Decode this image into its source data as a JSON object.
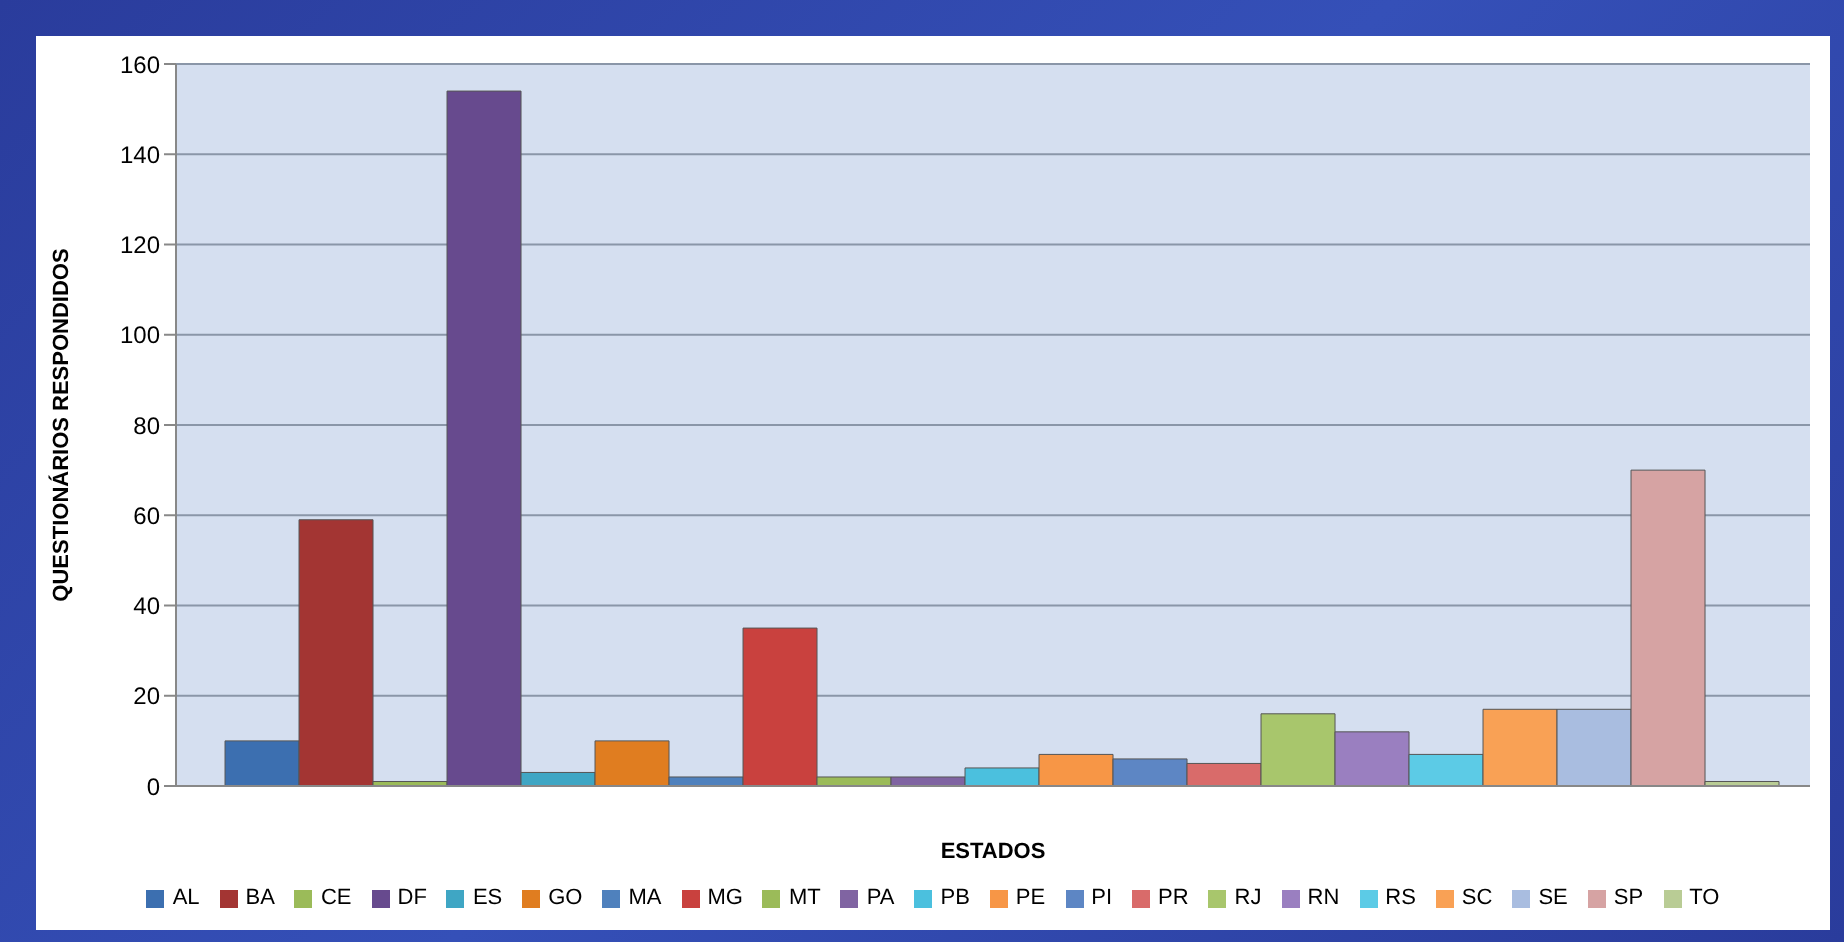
{
  "chart_data": {
    "type": "bar",
    "xlabel": "ESTADOS",
    "ylabel": "QUESTIONÁRIOS RESPONDIDOS",
    "categories": [
      null
    ],
    "series": [
      {
        "name": "AL",
        "color": "#3c6fb0",
        "values": [
          10
        ]
      },
      {
        "name": "BA",
        "color": "#a33533",
        "values": [
          59
        ]
      },
      {
        "name": "CE",
        "color": "#9bbb59",
        "values": [
          1
        ]
      },
      {
        "name": "DF",
        "color": "#674a8e",
        "values": [
          154
        ]
      },
      {
        "name": "ES",
        "color": "#3fa6c4",
        "values": [
          3
        ]
      },
      {
        "name": "GO",
        "color": "#e07d20",
        "values": [
          10
        ]
      },
      {
        "name": "MA",
        "color": "#4f81bd",
        "values": [
          2
        ]
      },
      {
        "name": "MG",
        "color": "#c9413e",
        "values": [
          35
        ]
      },
      {
        "name": "MT",
        "color": "#9bbb59",
        "values": [
          2
        ]
      },
      {
        "name": "PA",
        "color": "#8064a2",
        "values": [
          2
        ]
      },
      {
        "name": "PB",
        "color": "#4bc0de",
        "values": [
          4
        ]
      },
      {
        "name": "PE",
        "color": "#f79646",
        "values": [
          7
        ]
      },
      {
        "name": "PI",
        "color": "#5d86c4",
        "values": [
          6
        ]
      },
      {
        "name": "PR",
        "color": "#d96b6a",
        "values": [
          5
        ]
      },
      {
        "name": "RJ",
        "color": "#a8c66c",
        "values": [
          16
        ]
      },
      {
        "name": "RN",
        "color": "#9a7fc0",
        "values": [
          12
        ]
      },
      {
        "name": "RS",
        "color": "#5ccbe6",
        "values": [
          7
        ]
      },
      {
        "name": "SC",
        "color": "#f9a155",
        "values": [
          17
        ]
      },
      {
        "name": "SE",
        "color": "#a9bde0",
        "values": [
          17
        ]
      },
      {
        "name": "SP",
        "color": "#d6a3a3",
        "values": [
          70
        ]
      },
      {
        "name": "TO",
        "color": "#b9cc95",
        "values": [
          1
        ]
      }
    ],
    "ylim": [
      0,
      160
    ],
    "yticks": [
      0,
      20,
      40,
      60,
      80,
      100,
      120,
      140,
      160
    ],
    "grid": "y",
    "legend": "bottom"
  }
}
